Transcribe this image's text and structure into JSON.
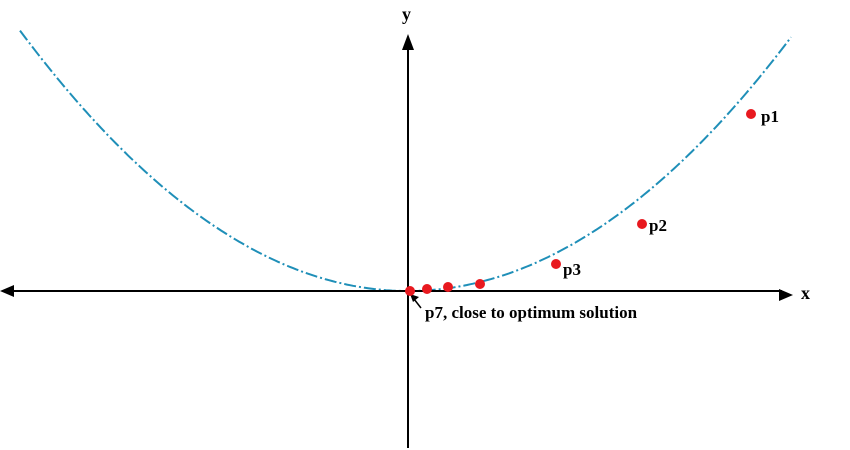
{
  "axes": {
    "x_label": "x",
    "y_label": "y"
  },
  "colors": {
    "curve": "#1f8fb8",
    "points": "#e8191f",
    "axis": "#000000"
  },
  "curve": {
    "style": "dash-dot"
  },
  "points": [
    {
      "label": "p1"
    },
    {
      "label": "p2"
    },
    {
      "label": "p3"
    },
    {
      "label": ""
    },
    {
      "label": ""
    },
    {
      "label": ""
    },
    {
      "label": "p7, close to optimum solution"
    }
  ]
}
